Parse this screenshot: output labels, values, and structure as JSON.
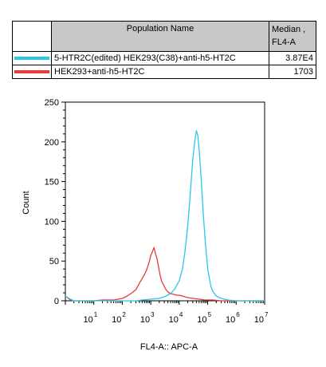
{
  "legend": {
    "header_name": "Population Name",
    "header_value_line1": "Median ,",
    "header_value_line2": "FL4-A",
    "rows": [
      {
        "name": "5-HTR2C(edited) HEK293(C38)+anti-h5-HT2C",
        "value": "3.87E4",
        "color": "#2ac8e8"
      },
      {
        "name": "HEK293+anti-h5-HT2C",
        "value": "1703",
        "color": "#e83a36"
      }
    ]
  },
  "chart_data": {
    "type": "line",
    "title": "",
    "xlabel": "FL4-A:: APC-A",
    "ylabel": "Count",
    "x_scale": "log",
    "xlim": [
      1,
      10000000
    ],
    "ylim": [
      0,
      250
    ],
    "x_ticks": [
      {
        "base": "10",
        "exp": "1"
      },
      {
        "base": "10",
        "exp": "2"
      },
      {
        "base": "10",
        "exp": "3"
      },
      {
        "base": "10",
        "exp": "4"
      },
      {
        "base": "10",
        "exp": "5"
      },
      {
        "base": "10",
        "exp": "6"
      },
      {
        "base": "10",
        "exp": "7"
      }
    ],
    "x_tick_values": [
      10,
      100,
      1000,
      10000,
      100000,
      1000000,
      10000000
    ],
    "y_ticks": [
      "0",
      "50",
      "100",
      "150",
      "200",
      "250"
    ],
    "y_tick_values": [
      0,
      50,
      100,
      150,
      200,
      250
    ],
    "series": [
      {
        "name": "HEK293+anti-h5-HT2C",
        "color": "#e83a36",
        "x": [
          1,
          1.5,
          2,
          5,
          10,
          20,
          50,
          100,
          150,
          200,
          300,
          400,
          500,
          600,
          700,
          800,
          900,
          1000,
          1100,
          1200,
          1300,
          1400,
          1500,
          1600,
          1700,
          1900,
          2100,
          2400,
          2800,
          3300,
          4000,
          5000,
          6500,
          8000,
          10000,
          13000,
          16000,
          20000,
          30000,
          50000,
          80000,
          150000,
          300000,
          1000000,
          10000000
        ],
        "y": [
          6,
          1,
          0,
          0,
          0,
          1,
          1,
          3,
          6,
          9,
          14,
          22,
          28,
          33,
          38,
          44,
          50,
          57,
          60,
          64,
          67,
          62,
          58,
          55,
          51,
          42,
          33,
          25,
          20,
          15,
          11,
          9,
          8,
          7,
          7,
          6,
          5,
          4,
          3,
          2,
          1,
          1,
          0,
          0,
          0
        ]
      },
      {
        "name": "5-HTR2C(edited) HEK293(C38)+anti-h5-HT2C",
        "color": "#2ac8e8",
        "x": [
          1,
          1.5,
          2,
          5,
          10,
          50,
          100,
          300,
          500,
          1000,
          2000,
          3000,
          5000,
          7000,
          10000,
          13000,
          16000,
          20000,
          25000,
          30000,
          35000,
          40000,
          45000,
          50000,
          55000,
          60000,
          70000,
          80000,
          100000,
          130000,
          150000,
          200000,
          300000,
          500000,
          1000000,
          10000000
        ],
        "y": [
          6,
          2,
          0,
          0,
          0,
          0,
          0,
          0,
          1,
          2,
          3,
          5,
          9,
          15,
          25,
          40,
          62,
          95,
          140,
          178,
          200,
          214,
          208,
          190,
          170,
          150,
          110,
          80,
          40,
          18,
          12,
          6,
          3,
          1,
          0,
          0
        ]
      }
    ],
    "grid": false,
    "legend_position": "top"
  }
}
